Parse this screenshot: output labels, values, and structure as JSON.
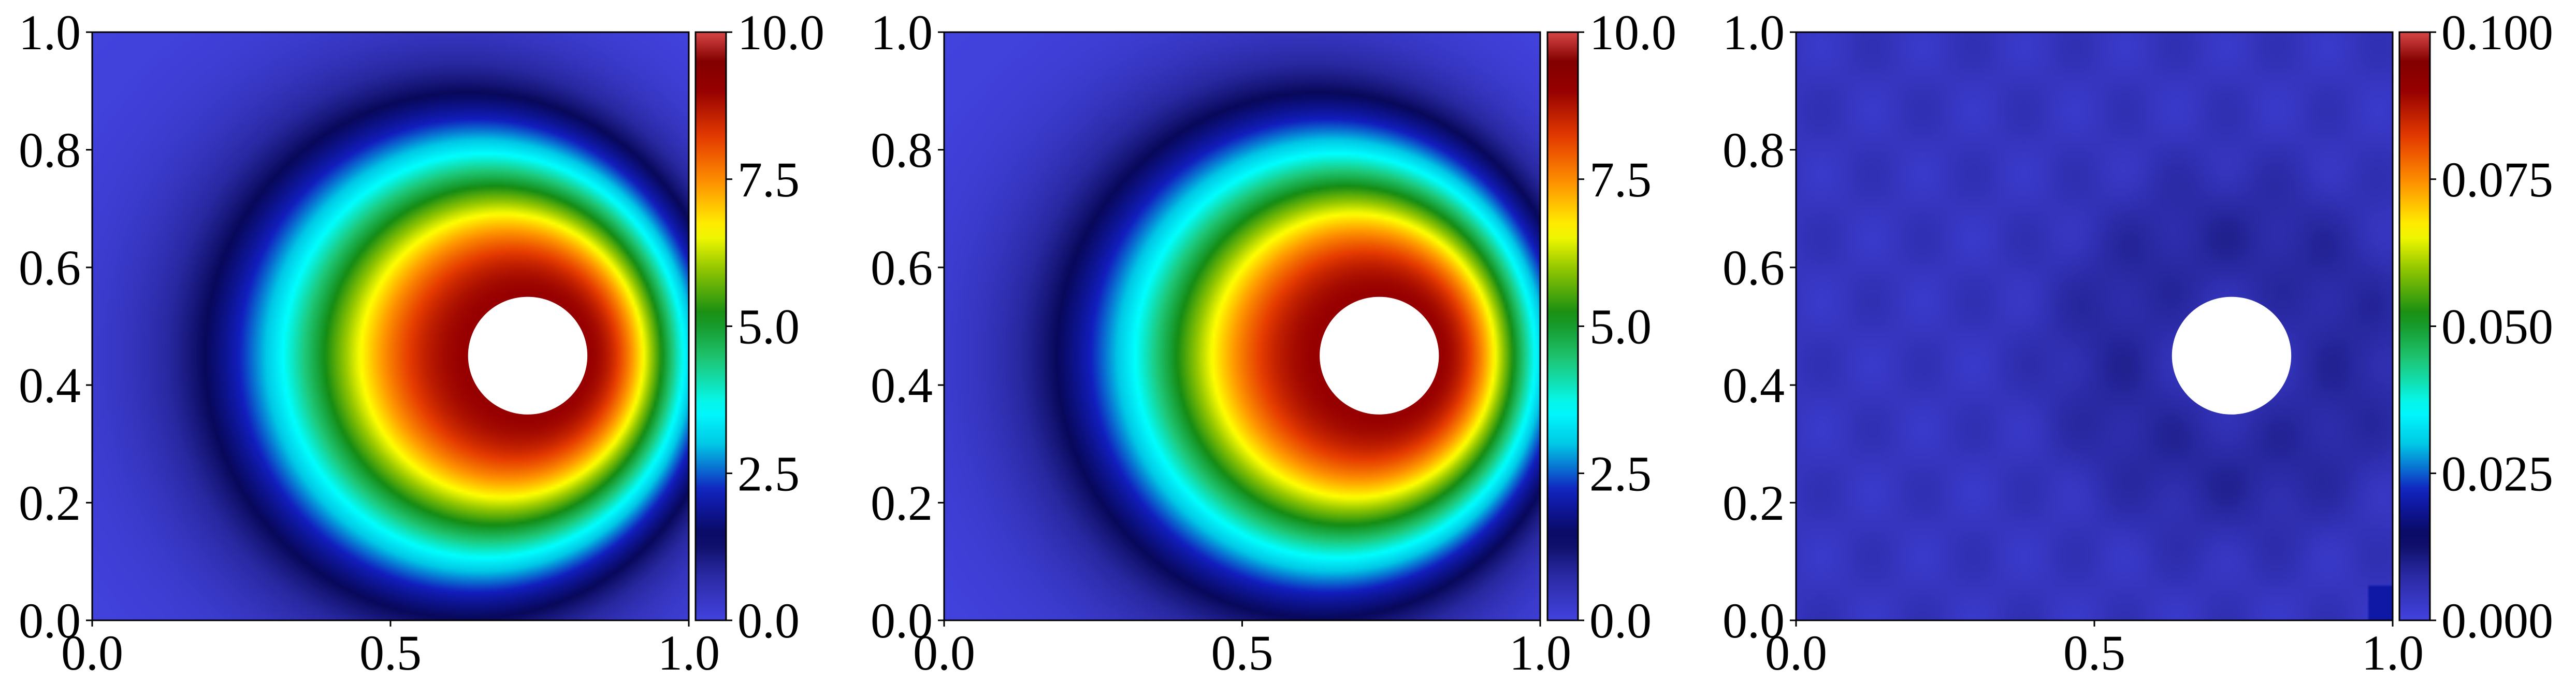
{
  "figure": {
    "background": "#ffffff"
  },
  "chart_data": [
    {
      "type": "heatmap",
      "name": "panel-1",
      "title": "",
      "xlabel": "",
      "ylabel": "",
      "xlim": [
        0.0,
        1.0
      ],
      "ylim": [
        0.0,
        1.0
      ],
      "x_ticks": [
        "0.0",
        "0.5",
        "1.0"
      ],
      "x_tick_values": [
        0.0,
        0.5,
        1.0
      ],
      "y_ticks": [
        "0.0",
        "0.2",
        "0.4",
        "0.6",
        "0.8",
        "1.0"
      ],
      "y_tick_values": [
        0.0,
        0.2,
        0.4,
        0.6,
        0.8,
        1.0
      ],
      "colorbar": {
        "min": 0.0,
        "max": 10.0,
        "ticks": [
          "0.0",
          "2.5",
          "5.0",
          "7.5",
          "10.0"
        ],
        "tick_values": [
          0.0,
          2.5,
          5.0,
          7.5,
          10.0
        ]
      },
      "colormap": "jet-like",
      "hole": {
        "cx": 0.73,
        "cy": 0.45,
        "r": 0.1
      },
      "field": {
        "peak_at_hole_edge": 9.0,
        "outer_level": 0.0,
        "shape": "rings around hole, skewed toward x = 1"
      }
    },
    {
      "type": "heatmap",
      "name": "panel-2",
      "title": "",
      "xlabel": "",
      "ylabel": "",
      "xlim": [
        0.0,
        1.0
      ],
      "ylim": [
        0.0,
        1.0
      ],
      "x_ticks": [
        "0.0",
        "0.5",
        "1.0"
      ],
      "x_tick_values": [
        0.0,
        0.5,
        1.0
      ],
      "y_ticks": [
        "0.0",
        "0.2",
        "0.4",
        "0.6",
        "0.8",
        "1.0"
      ],
      "y_tick_values": [
        0.0,
        0.2,
        0.4,
        0.6,
        0.8,
        1.0
      ],
      "colorbar": {
        "min": 0.0,
        "max": 10.0,
        "ticks": [
          "0.0",
          "2.5",
          "5.0",
          "7.5",
          "10.0"
        ],
        "tick_values": [
          0.0,
          2.5,
          5.0,
          7.5,
          10.0
        ]
      },
      "colormap": "jet-like",
      "hole": {
        "cx": 0.73,
        "cy": 0.45,
        "r": 0.1
      },
      "field": {
        "peak_at_hole_edge": 9.0,
        "outer_level": 0.0,
        "shape": "rings around hole, skewed toward x = 1"
      }
    },
    {
      "type": "heatmap",
      "name": "panel-3",
      "title": "",
      "xlabel": "",
      "ylabel": "",
      "xlim": [
        0.0,
        1.0
      ],
      "ylim": [
        0.0,
        1.0
      ],
      "x_ticks": [
        "0.0",
        "0.5",
        "1.0"
      ],
      "x_tick_values": [
        0.0,
        0.5,
        1.0
      ],
      "y_ticks": [
        "0.0",
        "0.2",
        "0.4",
        "0.6",
        "0.8",
        "1.0"
      ],
      "y_tick_values": [
        0.0,
        0.2,
        0.4,
        0.6,
        0.8,
        1.0
      ],
      "colorbar": {
        "min": 0.0,
        "max": 0.1,
        "ticks": [
          "0.000",
          "0.025",
          "0.050",
          "0.075",
          "0.100"
        ],
        "tick_values": [
          0.0,
          0.025,
          0.05,
          0.075,
          0.1
        ]
      },
      "colormap": "jet-like",
      "hole": {
        "cx": 0.73,
        "cy": 0.45,
        "r": 0.1
      },
      "field": {
        "typical_value": 0.004,
        "max_value": 0.02,
        "shape": "near-uniform low error with small variations around the hole"
      }
    }
  ]
}
